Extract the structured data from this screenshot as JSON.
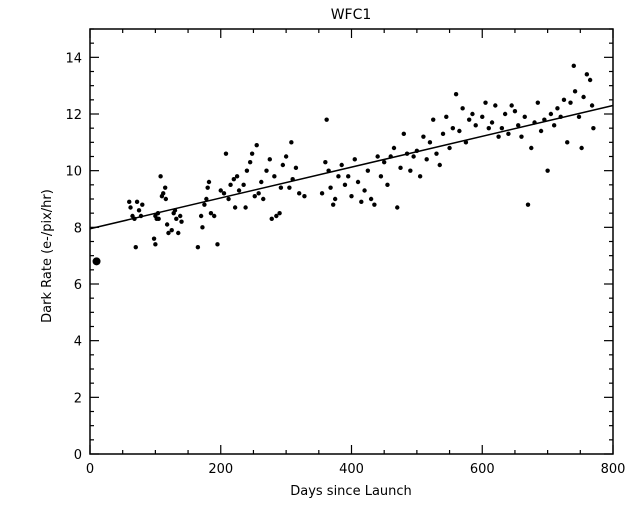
{
  "chart_data": {
    "type": "scatter",
    "title": "WFC1",
    "xlabel": "Days since Launch",
    "ylabel": "Dark Rate (e-/pix/hr)",
    "xlim": [
      0,
      800
    ],
    "ylim": [
      0,
      15
    ],
    "xticks": [
      0,
      200,
      400,
      600,
      800
    ],
    "yticks": [
      0,
      2,
      4,
      6,
      8,
      10,
      12,
      14
    ],
    "grid": false,
    "highlight_point": [
      10,
      6.8
    ],
    "fit_line": [
      [
        0,
        7.95
      ],
      [
        800,
        12.3
      ]
    ],
    "points": [
      [
        60,
        8.9
      ],
      [
        62,
        8.7
      ],
      [
        65,
        8.4
      ],
      [
        68,
        8.3
      ],
      [
        70,
        7.3
      ],
      [
        72,
        8.9
      ],
      [
        75,
        8.6
      ],
      [
        78,
        8.4
      ],
      [
        80,
        8.8
      ],
      [
        98,
        7.6
      ],
      [
        100,
        8.4
      ],
      [
        102,
        8.3
      ],
      [
        104,
        8.5
      ],
      [
        105,
        8.3
      ],
      [
        108,
        9.8
      ],
      [
        110,
        9.1
      ],
      [
        112,
        9.2
      ],
      [
        115,
        9.4
      ],
      [
        116,
        9.0
      ],
      [
        118,
        8.1
      ],
      [
        120,
        7.8
      ],
      [
        125,
        7.9
      ],
      [
        128,
        8.5
      ],
      [
        130,
        8.6
      ],
      [
        132,
        8.3
      ],
      [
        135,
        7.8
      ],
      [
        138,
        8.4
      ],
      [
        140,
        8.2
      ],
      [
        100,
        7.4
      ],
      [
        165,
        7.3
      ],
      [
        170,
        8.4
      ],
      [
        172,
        8.0
      ],
      [
        175,
        8.8
      ],
      [
        178,
        9.0
      ],
      [
        180,
        9.4
      ],
      [
        182,
        9.6
      ],
      [
        185,
        8.5
      ],
      [
        190,
        8.4
      ],
      [
        195,
        7.4
      ],
      [
        200,
        9.3
      ],
      [
        205,
        9.2
      ],
      [
        208,
        10.6
      ],
      [
        212,
        9.0
      ],
      [
        215,
        9.5
      ],
      [
        220,
        9.7
      ],
      [
        222,
        8.7
      ],
      [
        225,
        9.8
      ],
      [
        228,
        9.3
      ],
      [
        235,
        9.5
      ],
      [
        238,
        8.7
      ],
      [
        240,
        10.0
      ],
      [
        245,
        10.3
      ],
      [
        248,
        10.6
      ],
      [
        252,
        9.1
      ],
      [
        255,
        10.9
      ],
      [
        258,
        9.2
      ],
      [
        262,
        9.6
      ],
      [
        265,
        9.0
      ],
      [
        270,
        10.0
      ],
      [
        275,
        10.4
      ],
      [
        278,
        8.3
      ],
      [
        282,
        9.8
      ],
      [
        285,
        8.4
      ],
      [
        290,
        8.5
      ],
      [
        292,
        9.4
      ],
      [
        295,
        10.2
      ],
      [
        300,
        10.5
      ],
      [
        305,
        9.4
      ],
      [
        308,
        11.0
      ],
      [
        310,
        9.7
      ],
      [
        315,
        10.1
      ],
      [
        320,
        9.2
      ],
      [
        328,
        9.1
      ],
      [
        355,
        9.2
      ],
      [
        360,
        10.3
      ],
      [
        362,
        11.8
      ],
      [
        365,
        10.0
      ],
      [
        368,
        9.4
      ],
      [
        372,
        8.8
      ],
      [
        375,
        9.0
      ],
      [
        380,
        9.8
      ],
      [
        385,
        10.2
      ],
      [
        390,
        9.5
      ],
      [
        395,
        9.8
      ],
      [
        400,
        9.1
      ],
      [
        405,
        10.4
      ],
      [
        410,
        9.6
      ],
      [
        415,
        8.9
      ],
      [
        420,
        9.3
      ],
      [
        425,
        10.0
      ],
      [
        430,
        9.0
      ],
      [
        435,
        8.8
      ],
      [
        440,
        10.5
      ],
      [
        445,
        9.8
      ],
      [
        450,
        10.3
      ],
      [
        455,
        9.5
      ],
      [
        460,
        10.5
      ],
      [
        465,
        10.8
      ],
      [
        470,
        8.7
      ],
      [
        475,
        10.1
      ],
      [
        480,
        11.3
      ],
      [
        485,
        10.6
      ],
      [
        490,
        10.0
      ],
      [
        495,
        10.5
      ],
      [
        500,
        10.7
      ],
      [
        505,
        9.8
      ],
      [
        510,
        11.2
      ],
      [
        515,
        10.4
      ],
      [
        520,
        11.0
      ],
      [
        525,
        11.8
      ],
      [
        530,
        10.6
      ],
      [
        535,
        10.2
      ],
      [
        540,
        11.3
      ],
      [
        545,
        11.9
      ],
      [
        550,
        10.8
      ],
      [
        555,
        11.5
      ],
      [
        560,
        12.7
      ],
      [
        565,
        11.4
      ],
      [
        570,
        12.2
      ],
      [
        575,
        11.0
      ],
      [
        580,
        11.8
      ],
      [
        585,
        12.0
      ],
      [
        590,
        11.6
      ],
      [
        600,
        11.9
      ],
      [
        605,
        12.4
      ],
      [
        610,
        11.5
      ],
      [
        615,
        11.7
      ],
      [
        620,
        12.3
      ],
      [
        625,
        11.2
      ],
      [
        630,
        11.5
      ],
      [
        635,
        12.0
      ],
      [
        640,
        11.3
      ],
      [
        645,
        12.3
      ],
      [
        650,
        12.1
      ],
      [
        655,
        11.6
      ],
      [
        660,
        11.2
      ],
      [
        665,
        11.9
      ],
      [
        670,
        8.8
      ],
      [
        675,
        10.8
      ],
      [
        680,
        11.7
      ],
      [
        685,
        12.4
      ],
      [
        690,
        11.4
      ],
      [
        695,
        11.8
      ],
      [
        700,
        10.0
      ],
      [
        705,
        12.0
      ],
      [
        710,
        11.6
      ],
      [
        715,
        12.2
      ],
      [
        720,
        11.9
      ],
      [
        725,
        12.5
      ],
      [
        730,
        11.0
      ],
      [
        735,
        12.4
      ],
      [
        740,
        13.7
      ],
      [
        742,
        12.8
      ],
      [
        748,
        11.9
      ],
      [
        752,
        10.8
      ],
      [
        755,
        12.6
      ],
      [
        760,
        13.4
      ],
      [
        765,
        13.2
      ],
      [
        768,
        12.3
      ],
      [
        770,
        11.5
      ]
    ]
  }
}
